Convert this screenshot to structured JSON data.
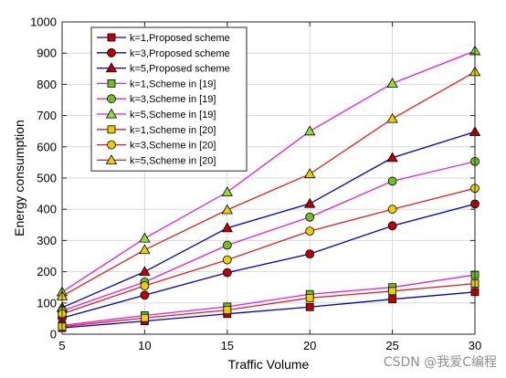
{
  "chart_data": {
    "type": "line",
    "title": "",
    "xlabel": "Traffic Volume",
    "ylabel": "Energy consumption",
    "x": [
      5,
      10,
      15,
      20,
      25,
      30
    ],
    "x_ticks": [
      "5",
      "10",
      "15",
      "20",
      "25",
      "30"
    ],
    "y_ticks": [
      "0",
      "100",
      "200",
      "300",
      "400",
      "500",
      "600",
      "700",
      "800",
      "900",
      "1000"
    ],
    "xlim": [
      5,
      30
    ],
    "ylim": [
      0,
      1000
    ],
    "grid": true,
    "legend_position": "top-left",
    "series": [
      {
        "name": "k=1,Proposed scheme",
        "values": [
          20,
          42,
          65,
          87,
          112,
          135
        ],
        "color": "#0000c8",
        "marker": "square",
        "marker_color": "#c00000"
      },
      {
        "name": "k=3,Proposed scheme",
        "values": [
          52,
          125,
          197,
          257,
          347,
          417
        ],
        "color": "#0000c8",
        "marker": "circle",
        "marker_color": "#c00000"
      },
      {
        "name": "k=5,Proposed scheme",
        "values": [
          85,
          200,
          340,
          418,
          565,
          648
        ],
        "color": "#0000c8",
        "marker": "triangle",
        "marker_color": "#c00000"
      },
      {
        "name": "k=1,Scheme in [19]",
        "values": [
          28,
          60,
          88,
          128,
          150,
          190
        ],
        "color": "#e020e0",
        "marker": "square",
        "marker_color": "#70c020"
      },
      {
        "name": "k=3,Scheme in [19]",
        "values": [
          75,
          167,
          285,
          375,
          490,
          553
        ],
        "color": "#e020e0",
        "marker": "circle",
        "marker_color": "#70c020"
      },
      {
        "name": "k=5,Scheme in [19]",
        "values": [
          135,
          307,
          455,
          650,
          803,
          907
        ],
        "color": "#e020e0",
        "marker": "triangle",
        "marker_color": "#90e030"
      },
      {
        "name": "k=1,Scheme in [20]",
        "values": [
          24,
          52,
          77,
          116,
          138,
          162
        ],
        "color": "#e02020",
        "marker": "square",
        "marker_color": "#e8d000"
      },
      {
        "name": "k=3,Scheme in [20]",
        "values": [
          65,
          155,
          238,
          330,
          400,
          467
        ],
        "color": "#e02020",
        "marker": "circle",
        "marker_color": "#e8d000"
      },
      {
        "name": "k=5,Scheme in [20]",
        "values": [
          122,
          270,
          398,
          513,
          690,
          840
        ],
        "color": "#e02020",
        "marker": "triangle",
        "marker_color": "#e8d000"
      }
    ]
  },
  "watermark": "CSDN @我爱C编程"
}
